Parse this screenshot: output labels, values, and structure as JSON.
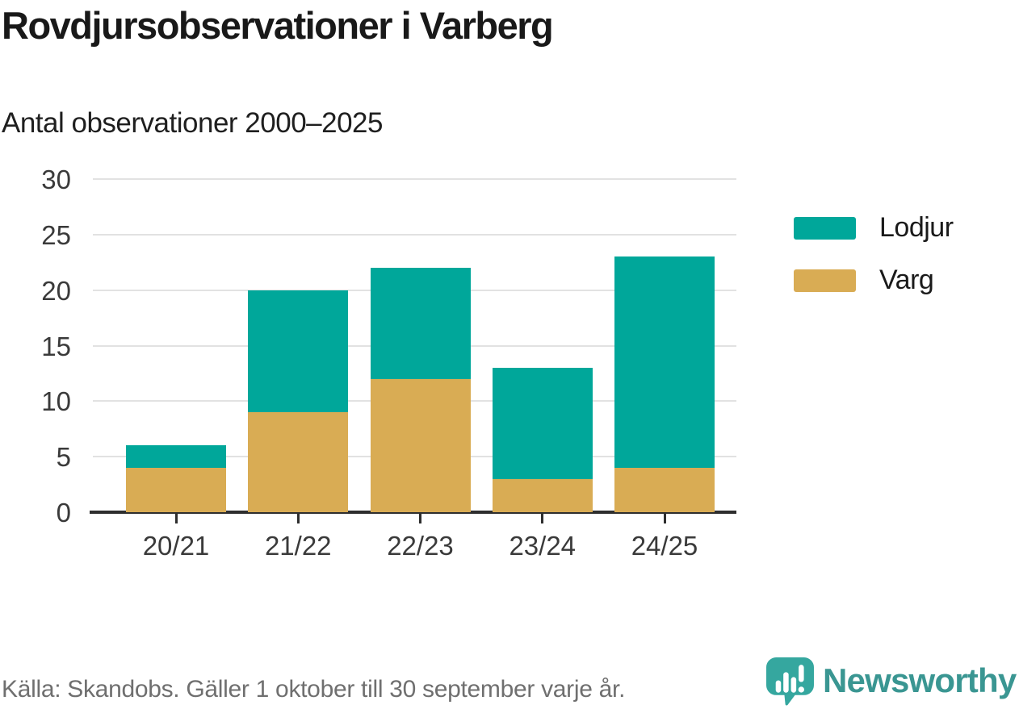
{
  "header": {
    "title": "Rovdjursobservationer i Varberg",
    "subtitle": "Antal observationer 2000–2025"
  },
  "chart_data": {
    "type": "bar",
    "stacked": true,
    "title": "Rovdjursobservationer i Varberg",
    "subtitle": "Antal observationer 2000–2025",
    "categories": [
      "20/21",
      "21/22",
      "22/23",
      "23/24",
      "24/25"
    ],
    "series": [
      {
        "name": "Varg",
        "color": "#D9AC54",
        "values": [
          4,
          9,
          12,
          3,
          4
        ]
      },
      {
        "name": "Lodjur",
        "color": "#00A79A",
        "values": [
          2,
          11,
          10,
          10,
          19
        ]
      }
    ],
    "totals": [
      6,
      20,
      22,
      13,
      23
    ],
    "ylim": [
      0,
      30
    ],
    "yticks": [
      0,
      5,
      10,
      15,
      20,
      25,
      30
    ],
    "xlabel": "",
    "ylabel": "",
    "grid": true,
    "legend_position": "right"
  },
  "legend": {
    "items": [
      {
        "label": "Lodjur",
        "color": "#00A79A"
      },
      {
        "label": "Varg",
        "color": "#D9AC54"
      }
    ]
  },
  "footer": {
    "source": "Källa: Skandobs. Gäller 1 oktober till 30 september varje år.",
    "brand": "Newsworthy"
  },
  "colors": {
    "lodjur": "#00A79A",
    "varg": "#D9AC54",
    "axis": "#2e2e2e",
    "gridline": "#e2e2e2",
    "text": "#191919",
    "muted_text": "#6f6f6f",
    "brand_teal": "#3a9692"
  },
  "icons": {
    "brand_icon": "newsworthy-speech-bubble-chart-icon"
  }
}
